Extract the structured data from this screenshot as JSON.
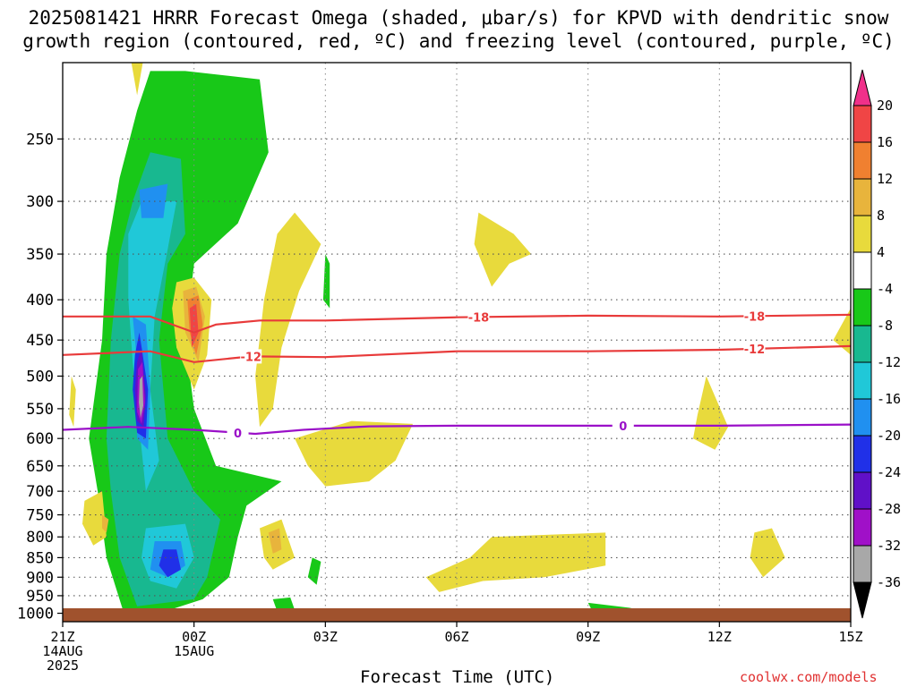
{
  "title_line1": "2025081421 HRRR Forecast Omega (shaded, μbar/s) for KPVD with dendritic snow",
  "title_line2": "growth region (contoured, red, ºC) and freezing level (contoured, purple, ºC)",
  "credit": "coolwx.com/models",
  "chart_data": {
    "type": "heatmap",
    "xlabel": "Forecast Time (UTC)",
    "ylabel": "",
    "x_range_hours": [
      0,
      18
    ],
    "x_ticks": [
      {
        "h": 0,
        "lines": [
          "21Z",
          "14AUG",
          "2025"
        ]
      },
      {
        "h": 3,
        "lines": [
          "00Z",
          "15AUG"
        ]
      },
      {
        "h": 6,
        "lines": [
          "03Z"
        ]
      },
      {
        "h": 9,
        "lines": [
          "06Z"
        ]
      },
      {
        "h": 12,
        "lines": [
          "09Z"
        ]
      },
      {
        "h": 15,
        "lines": [
          "12Z"
        ]
      },
      {
        "h": 18,
        "lines": [
          "15Z"
        ]
      }
    ],
    "y_axis": "pressure_hpa_log",
    "y_range": [
      1025,
      200
    ],
    "y_ticks": [
      250,
      300,
      350,
      400,
      450,
      500,
      550,
      600,
      650,
      700,
      750,
      800,
      850,
      900,
      950,
      1000
    ],
    "grid": true,
    "colorbar": {
      "labels": [
        "20",
        "16",
        "12",
        "8",
        "4",
        "-4",
        "-8",
        "-12",
        "-16",
        "-20",
        "-24",
        "-28",
        "-32",
        "-36"
      ],
      "colors": [
        "#f0308a",
        "#f04545",
        "#f08030",
        "#e8b43c",
        "#e8da3c",
        "#ffffff",
        "#18c818",
        "#18b890",
        "#20c8d8",
        "#2090f0",
        "#2030e8",
        "#6010c8",
        "#a010c8",
        "#a8a8a8",
        "#000000"
      ]
    },
    "shaded_regions": [
      {
        "level": -4,
        "pts": [
          [
            1.4,
            1000
          ],
          [
            1.0,
            850
          ],
          [
            0.8,
            700
          ],
          [
            0.6,
            600
          ],
          [
            0.9,
            450
          ],
          [
            1.0,
            350
          ],
          [
            1.3,
            280
          ],
          [
            1.7,
            230
          ],
          [
            2.0,
            205
          ],
          [
            2.8,
            205
          ],
          [
            4.5,
            210
          ],
          [
            4.7,
            260
          ],
          [
            4.0,
            320
          ],
          [
            3.0,
            360
          ],
          [
            2.8,
            450
          ],
          [
            3.0,
            550
          ],
          [
            3.5,
            650
          ],
          [
            5.0,
            680
          ],
          [
            4.2,
            730
          ],
          [
            4.0,
            800
          ],
          [
            3.8,
            900
          ],
          [
            3.2,
            960
          ],
          [
            2.2,
            1000
          ]
        ]
      },
      {
        "level": -8,
        "pts": [
          [
            1.7,
            980
          ],
          [
            1.3,
            850
          ],
          [
            1.1,
            700
          ],
          [
            1.0,
            600
          ],
          [
            1.1,
            450
          ],
          [
            1.3,
            350
          ],
          [
            1.6,
            300
          ],
          [
            2.0,
            260
          ],
          [
            2.7,
            265
          ],
          [
            2.8,
            330
          ],
          [
            2.4,
            360
          ],
          [
            2.2,
            450
          ],
          [
            2.4,
            600
          ],
          [
            3.0,
            700
          ],
          [
            3.6,
            760
          ],
          [
            3.3,
            900
          ],
          [
            3.0,
            960
          ]
        ]
      },
      {
        "level": -12,
        "pts": [
          [
            1.6,
            480
          ],
          [
            1.5,
            400
          ],
          [
            1.5,
            330
          ],
          [
            1.8,
            300
          ],
          [
            2.6,
            300
          ],
          [
            2.4,
            345
          ],
          [
            2.1,
            420
          ],
          [
            2.0,
            520
          ],
          [
            2.2,
            640
          ],
          [
            1.9,
            700
          ]
        ]
      },
      {
        "level": -12,
        "pts": [
          [
            1.9,
            780
          ],
          [
            2.8,
            770
          ],
          [
            3.0,
            850
          ],
          [
            2.6,
            930
          ],
          [
            2.0,
            910
          ],
          [
            1.8,
            850
          ]
        ]
      },
      {
        "level": -16,
        "pts": [
          [
            1.75,
            290
          ],
          [
            2.4,
            285
          ],
          [
            2.3,
            315
          ],
          [
            1.8,
            315
          ]
        ]
      },
      {
        "level": -16,
        "pts": [
          [
            1.7,
            480
          ],
          [
            1.6,
            420
          ],
          [
            1.9,
            430
          ],
          [
            2.0,
            520
          ],
          [
            1.95,
            620
          ],
          [
            1.7,
            600
          ]
        ]
      },
      {
        "level": -16,
        "pts": [
          [
            2.1,
            810
          ],
          [
            2.7,
            810
          ],
          [
            2.8,
            870
          ],
          [
            2.4,
            900
          ],
          [
            2.0,
            880
          ]
        ]
      },
      {
        "level": -20,
        "pts": [
          [
            1.65,
            470
          ],
          [
            1.75,
            440
          ],
          [
            1.95,
            520
          ],
          [
            1.9,
            600
          ],
          [
            1.7,
            590
          ],
          [
            1.6,
            520
          ]
        ]
      },
      {
        "level": -20,
        "pts": [
          [
            2.3,
            830
          ],
          [
            2.6,
            830
          ],
          [
            2.7,
            880
          ],
          [
            2.4,
            900
          ],
          [
            2.2,
            870
          ]
        ]
      },
      {
        "level": -24,
        "pts": [
          [
            1.7,
            480
          ],
          [
            1.8,
            460
          ],
          [
            1.9,
            530
          ],
          [
            1.85,
            580
          ],
          [
            1.7,
            570
          ],
          [
            1.65,
            520
          ]
        ]
      },
      {
        "level": -28,
        "pts": [
          [
            1.72,
            490
          ],
          [
            1.82,
            480
          ],
          [
            1.88,
            540
          ],
          [
            1.8,
            575
          ],
          [
            1.7,
            555
          ]
        ]
      },
      {
        "level": -32,
        "pts": [
          [
            1.76,
            505
          ],
          [
            1.82,
            500
          ],
          [
            1.84,
            545
          ],
          [
            1.78,
            565
          ],
          [
            1.74,
            540
          ]
        ]
      },
      {
        "level": 4,
        "pts": [
          [
            2.6,
            380
          ],
          [
            3.0,
            375
          ],
          [
            3.4,
            400
          ],
          [
            3.3,
            470
          ],
          [
            3.0,
            520
          ],
          [
            2.6,
            460
          ],
          [
            2.5,
            410
          ]
        ]
      },
      {
        "level": 8,
        "pts": [
          [
            2.75,
            390
          ],
          [
            3.05,
            385
          ],
          [
            3.25,
            420
          ],
          [
            3.1,
            480
          ],
          [
            2.8,
            440
          ]
        ]
      },
      {
        "level": 12,
        "pts": [
          [
            2.85,
            400
          ],
          [
            3.1,
            395
          ],
          [
            3.2,
            430
          ],
          [
            3.05,
            470
          ],
          [
            2.9,
            440
          ]
        ]
      },
      {
        "level": 16,
        "pts": [
          [
            2.9,
            410
          ],
          [
            3.05,
            405
          ],
          [
            3.1,
            440
          ],
          [
            2.95,
            460
          ]
        ]
      },
      {
        "level": 4,
        "pts": [
          [
            4.9,
            330
          ],
          [
            5.3,
            310
          ],
          [
            5.9,
            340
          ],
          [
            5.4,
            390
          ],
          [
            5.0,
            460
          ],
          [
            4.8,
            550
          ],
          [
            4.5,
            580
          ],
          [
            4.4,
            500
          ],
          [
            4.6,
            400
          ]
        ]
      },
      {
        "level": 4,
        "pts": [
          [
            5.3,
            600
          ],
          [
            6.6,
            570
          ],
          [
            8.0,
            575
          ],
          [
            7.6,
            640
          ],
          [
            7.0,
            680
          ],
          [
            6.0,
            690
          ],
          [
            5.6,
            650
          ]
        ]
      },
      {
        "level": 4,
        "pts": [
          [
            9.5,
            310
          ],
          [
            10.3,
            330
          ],
          [
            10.7,
            350
          ],
          [
            10.2,
            360
          ],
          [
            9.8,
            385
          ],
          [
            9.4,
            340
          ]
        ]
      },
      {
        "level": 4,
        "pts": [
          [
            4.5,
            780
          ],
          [
            5.0,
            760
          ],
          [
            5.3,
            850
          ],
          [
            4.8,
            880
          ],
          [
            4.6,
            850
          ]
        ]
      },
      {
        "level": 4,
        "pts": [
          [
            8.3,
            900
          ],
          [
            9.3,
            850
          ],
          [
            9.8,
            800
          ],
          [
            12.4,
            790
          ],
          [
            12.4,
            870
          ],
          [
            11.0,
            900
          ],
          [
            9.6,
            910
          ],
          [
            8.6,
            940
          ]
        ]
      },
      {
        "level": 4,
        "pts": [
          [
            14.7,
            500
          ],
          [
            15.2,
            580
          ],
          [
            14.9,
            620
          ],
          [
            14.4,
            600
          ],
          [
            14.5,
            560
          ]
        ]
      },
      {
        "level": 4,
        "pts": [
          [
            15.8,
            790
          ],
          [
            16.2,
            780
          ],
          [
            16.5,
            850
          ],
          [
            16.0,
            900
          ],
          [
            15.7,
            850
          ]
        ]
      },
      {
        "level": 4,
        "pts": [
          [
            18.0,
            410
          ],
          [
            17.6,
            450
          ],
          [
            18.0,
            470
          ]
        ]
      },
      {
        "level": 4,
        "pts": [
          [
            0.5,
            720
          ],
          [
            0.9,
            700
          ],
          [
            1.0,
            800
          ],
          [
            0.7,
            820
          ],
          [
            0.45,
            770
          ]
        ]
      },
      {
        "level": 4,
        "pts": [
          [
            0.2,
            500
          ],
          [
            0.3,
            520
          ],
          [
            0.25,
            580
          ],
          [
            0.15,
            560
          ]
        ]
      },
      {
        "level": 4,
        "pts": [
          [
            1.5,
            190
          ],
          [
            1.9,
            190
          ],
          [
            1.7,
            220
          ]
        ]
      },
      {
        "level": 8,
        "pts": [
          [
            0.9,
            750
          ],
          [
            1.05,
            760
          ],
          [
            1.0,
            790
          ],
          [
            0.9,
            780
          ]
        ]
      },
      {
        "level": 8,
        "pts": [
          [
            4.7,
            790
          ],
          [
            4.95,
            780
          ],
          [
            5.0,
            830
          ],
          [
            4.8,
            840
          ]
        ]
      },
      {
        "level": -4,
        "pts": [
          [
            6.0,
            350
          ],
          [
            6.1,
            360
          ],
          [
            6.1,
            410
          ],
          [
            5.95,
            400
          ]
        ]
      },
      {
        "level": -4,
        "pts": [
          [
            5.7,
            850
          ],
          [
            5.9,
            860
          ],
          [
            5.8,
            920
          ],
          [
            5.6,
            900
          ]
        ]
      },
      {
        "level": -4,
        "pts": [
          [
            4.8,
            960
          ],
          [
            5.2,
            955
          ],
          [
            5.3,
            990
          ],
          [
            4.9,
            995
          ]
        ]
      },
      {
        "level": -4,
        "pts": [
          [
            12.0,
            970
          ],
          [
            13.0,
            985
          ],
          [
            12.1,
            995
          ]
        ]
      }
    ],
    "contours": [
      {
        "label": "-18",
        "color": "#e83a3a",
        "label_at": [
          9.5,
          15.8
        ],
        "pts": [
          [
            0,
            420
          ],
          [
            2,
            420
          ],
          [
            3,
            440
          ],
          [
            3.5,
            430
          ],
          [
            4.5,
            425
          ],
          [
            6,
            425
          ],
          [
            9,
            421
          ],
          [
            12,
            419
          ],
          [
            15,
            420
          ],
          [
            18,
            418
          ]
        ]
      },
      {
        "label": "-12",
        "color": "#e83a3a",
        "label_at": [
          4.3,
          15.8
        ],
        "pts": [
          [
            0,
            470
          ],
          [
            2,
            465
          ],
          [
            3,
            480
          ],
          [
            4.3,
            472
          ],
          [
            6,
            473
          ],
          [
            9,
            465
          ],
          [
            12,
            465
          ],
          [
            15,
            463
          ],
          [
            18,
            458
          ]
        ]
      },
      {
        "label": "0",
        "color": "#9a10c8",
        "label_at": [
          4.0,
          12.8
        ],
        "pts": [
          [
            0,
            585
          ],
          [
            1.5,
            580
          ],
          [
            3,
            585
          ],
          [
            4.4,
            592
          ],
          [
            5.5,
            585
          ],
          [
            7,
            579
          ],
          [
            9,
            578
          ],
          [
            12,
            578
          ],
          [
            15,
            578
          ],
          [
            18,
            576
          ]
        ]
      }
    ]
  }
}
